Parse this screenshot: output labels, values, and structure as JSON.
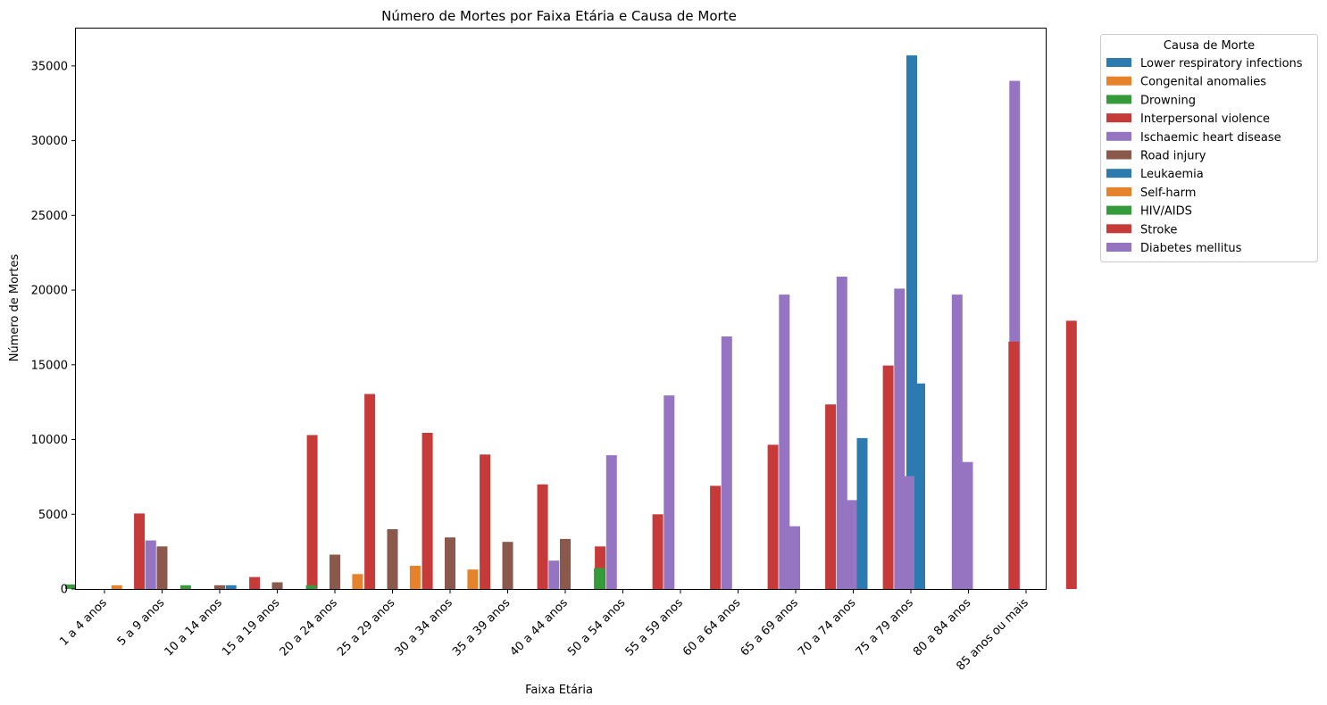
{
  "chart_data": {
    "type": "bar",
    "title": "Número de Mortes por Faixa Etária e Causa de Morte",
    "xlabel": "Faixa Etária",
    "ylabel": "Número de Mortes",
    "ylim": [
      0,
      37500
    ],
    "yticks": [
      0,
      5000,
      10000,
      15000,
      20000,
      25000,
      30000,
      35000
    ],
    "grid": false,
    "legend_title": "Causa de Morte",
    "legend_position": "outside-top-right",
    "categories": [
      "1 a 4 anos",
      "5 a 9 anos",
      "10 a 14 anos",
      "15 a 19 anos",
      "20 a 24 anos",
      "25 a 29 anos",
      "30 a 34 anos",
      "35 a 39 anos",
      "40 a 44 anos",
      "50 a 54 anos",
      "55 a 59 anos",
      "60 a 64 anos",
      "65 a 69 anos",
      "70 a 74 anos",
      "75 a 79 anos",
      "80 a 84 anos",
      "85 anos ou mais"
    ],
    "series": [
      {
        "name": "Lower respiratory infections",
        "color": "#2c7bb0",
        "values": [
          null,
          null,
          null,
          null,
          null,
          null,
          null,
          null,
          null,
          null,
          null,
          null,
          null,
          null,
          null,
          35700,
          null
        ]
      },
      {
        "name": "Congenital anomalies",
        "color": "#e6822b",
        "values": [
          null,
          250,
          null,
          null,
          null,
          null,
          null,
          null,
          null,
          null,
          null,
          null,
          null,
          null,
          null,
          null,
          null
        ]
      },
      {
        "name": "Drowning",
        "color": "#359b3a",
        "values": [
          300,
          null,
          250,
          null,
          null,
          null,
          null,
          null,
          null,
          null,
          null,
          null,
          null,
          null,
          null,
          null,
          null
        ]
      },
      {
        "name": "Interpersonal violence",
        "color": "#c73a3a",
        "values": [
          null,
          5050,
          null,
          800,
          10300,
          13050,
          10450,
          9000,
          7000,
          2850,
          5000,
          6900,
          9650,
          12350,
          14950,
          null,
          null
        ]
      },
      {
        "name": "Ischaemic heart disease",
        "color": "#9574c1",
        "values": [
          null,
          3250,
          null,
          null,
          null,
          null,
          null,
          null,
          1900,
          8950,
          12950,
          16900,
          19700,
          20900,
          20100,
          19700,
          34000
        ]
      },
      {
        "name": "Road injury",
        "color": "#8a594c",
        "values": [
          null,
          2850,
          250,
          450,
          2300,
          4000,
          3450,
          3150,
          3350,
          null,
          null,
          null,
          null,
          null,
          null,
          null,
          null
        ]
      },
      {
        "name": "Leukaemia",
        "color": "#2c7bb0",
        "values": [
          null,
          null,
          250,
          null,
          null,
          null,
          null,
          null,
          null,
          null,
          null,
          null,
          null,
          null,
          null,
          null,
          null
        ]
      },
      {
        "name": "Self-harm",
        "color": "#e6822b",
        "values": [
          null,
          null,
          null,
          null,
          1000,
          1550,
          1300,
          null,
          null,
          null,
          null,
          null,
          null,
          null,
          null,
          null,
          null
        ]
      },
      {
        "name": "HIV/AIDS",
        "color": "#359b3a",
        "values": [
          null,
          null,
          null,
          250,
          null,
          null,
          null,
          null,
          1400,
          null,
          null,
          null,
          null,
          null,
          null,
          null,
          null
        ]
      },
      {
        "name": "Stroke",
        "color": "#c73a3a",
        "values": [
          null,
          null,
          null,
          null,
          null,
          null,
          null,
          null,
          null,
          null,
          null,
          null,
          null,
          null,
          null,
          16550,
          17950
        ]
      },
      {
        "name": "Diabetes mellitus",
        "color": "#9574c1",
        "values": [
          null,
          null,
          null,
          null,
          null,
          null,
          null,
          null,
          null,
          null,
          null,
          4200,
          5950,
          7550,
          8500,
          null,
          null
        ]
      }
    ],
    "extra_bars": [
      {
        "category": "70 a 74 anos",
        "series": "Lower respiratory infections",
        "value": 10100
      },
      {
        "category": "75 a 79 anos",
        "series": "Lower respiratory infections",
        "value": 13750
      }
    ]
  }
}
